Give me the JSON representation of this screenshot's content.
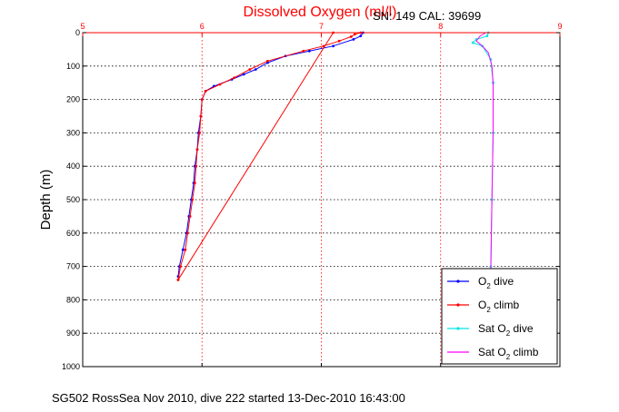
{
  "chart_data": {
    "type": "line",
    "title": "Dissolved Oxygen (ml/l)",
    "annotation": "SN: 149  CAL: 39699",
    "ylabel": "Depth (m)",
    "footer": "SG502 RossSea Nov 2010, dive 222 started 13-Dec-2010 16:43:00",
    "xlim": [
      5,
      9
    ],
    "ylim": [
      0,
      1000
    ],
    "y_reversed": true,
    "x_axis_position": "top",
    "x_ticks": [
      "5",
      "6",
      "7",
      "8",
      "9"
    ],
    "y_ticks": [
      "0",
      "100",
      "200",
      "300",
      "400",
      "500",
      "600",
      "700",
      "800",
      "900",
      "1000"
    ],
    "grid": true,
    "legend_position": "bottom-right",
    "colors": {
      "axis_top": "#ff0000",
      "axis": "#000000",
      "grid": "#000000",
      "title": "#ff0000"
    },
    "series": [
      {
        "name_main": "O",
        "name_sub": "2",
        "name_suffix": " dive",
        "color": "#0000ff",
        "marker": "dot",
        "points": [
          [
            7.35,
            0
          ],
          [
            7.33,
            10
          ],
          [
            7.27,
            20
          ],
          [
            7.1,
            40
          ],
          [
            6.9,
            55
          ],
          [
            6.7,
            70
          ],
          [
            6.55,
            90
          ],
          [
            6.45,
            110
          ],
          [
            6.35,
            125
          ],
          [
            6.25,
            140
          ],
          [
            6.1,
            160
          ],
          [
            6.03,
            175
          ],
          [
            6.0,
            200
          ],
          [
            5.99,
            250
          ],
          [
            5.97,
            300
          ],
          [
            5.96,
            350
          ],
          [
            5.94,
            400
          ],
          [
            5.93,
            450
          ],
          [
            5.91,
            500
          ],
          [
            5.89,
            550
          ],
          [
            5.87,
            600
          ],
          [
            5.84,
            650
          ],
          [
            5.81,
            700
          ],
          [
            5.8,
            730
          ]
        ]
      },
      {
        "name_main": "O",
        "name_sub": "2",
        "name_suffix": " climb",
        "color": "#ff0000",
        "marker": "dot",
        "points": [
          [
            5.8,
            740
          ],
          [
            5.82,
            700
          ],
          [
            5.86,
            650
          ],
          [
            5.88,
            600
          ],
          [
            5.9,
            550
          ],
          [
            5.92,
            500
          ],
          [
            5.94,
            450
          ],
          [
            5.95,
            400
          ],
          [
            5.96,
            350
          ],
          [
            5.98,
            300
          ],
          [
            5.99,
            250
          ],
          [
            6.0,
            200
          ],
          [
            6.03,
            175
          ],
          [
            6.15,
            155
          ],
          [
            6.27,
            135
          ],
          [
            6.4,
            110
          ],
          [
            6.55,
            85
          ],
          [
            6.85,
            55
          ],
          [
            7.02,
            40
          ],
          [
            7.15,
            25
          ],
          [
            7.25,
            12
          ],
          [
            7.28,
            5
          ],
          [
            7.33,
            0
          ],
          [
            7.1,
            0
          ],
          [
            5.8,
            740
          ]
        ]
      },
      {
        "name_main": "Sat O",
        "name_sub": "2",
        "name_suffix": " dive",
        "color": "#00e5e5",
        "marker": "dot",
        "points": [
          [
            8.4,
            0
          ],
          [
            8.39,
            10
          ],
          [
            8.3,
            20
          ],
          [
            8.27,
            30
          ],
          [
            8.35,
            40
          ],
          [
            8.42,
            80
          ],
          [
            8.44,
            150
          ],
          [
            8.44,
            300
          ],
          [
            8.43,
            500
          ],
          [
            8.42,
            700
          ]
        ]
      },
      {
        "name_main": "Sat O",
        "name_sub": "2",
        "name_suffix": " climb",
        "color": "#ff00ff",
        "marker": "none",
        "points": [
          [
            8.42,
            720
          ],
          [
            8.43,
            500
          ],
          [
            8.44,
            300
          ],
          [
            8.44,
            150
          ],
          [
            8.43,
            100
          ],
          [
            8.4,
            60
          ],
          [
            8.35,
            40
          ],
          [
            8.3,
            25
          ],
          [
            8.33,
            10
          ],
          [
            8.38,
            0
          ]
        ]
      }
    ]
  }
}
